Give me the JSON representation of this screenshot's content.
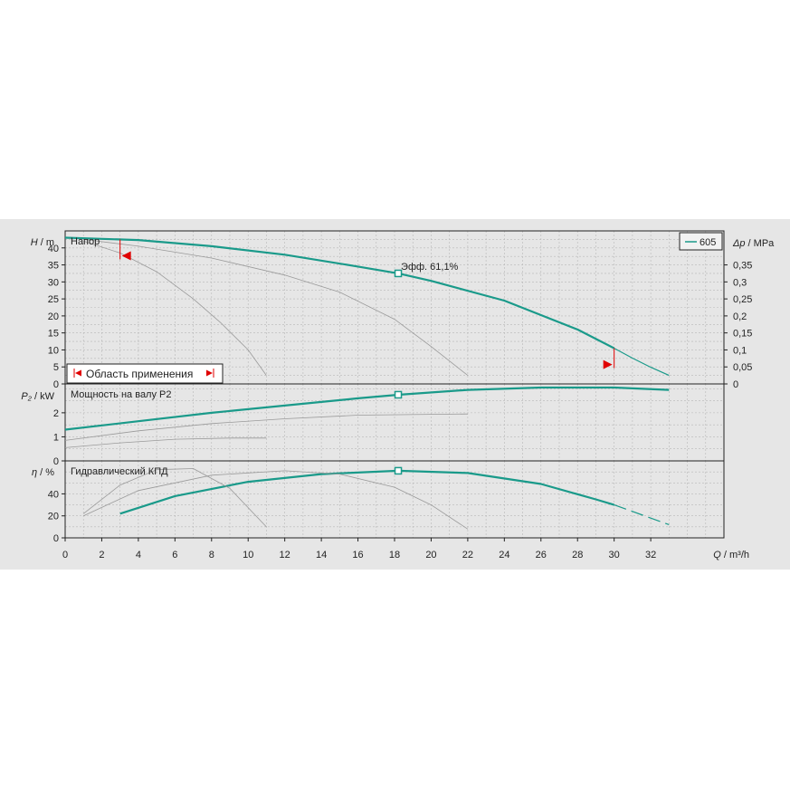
{
  "colors": {
    "background": "#e6e6e6",
    "page": "#ffffff",
    "curve": "#1a9a8a",
    "thin_curve": "#9a9a9a",
    "grid": "#b8b8b8",
    "marker_red": "#e00000",
    "axis": "#222222"
  },
  "legend": {
    "label": "605"
  },
  "duty_point": {
    "q": 18.2,
    "label": "Эфф.  61,1%"
  },
  "application_range": {
    "label": "Область применения",
    "q_min": 3,
    "q_max": 30
  },
  "chart_data": [
    {
      "type": "line",
      "title": "Напор",
      "ylabel_symbol": "H",
      "ylabel_unit": "m",
      "ylim": [
        0,
        45
      ],
      "yticks": [
        0,
        5,
        10,
        15,
        20,
        25,
        30,
        35,
        40
      ],
      "secondary_axis": {
        "label_symbol": "Δp",
        "unit": "MPa",
        "ylim": [
          0,
          0.45
        ],
        "ticks": [
          "0",
          "0,05",
          "0,1",
          "0,15",
          "0,2",
          "0,25",
          "0,3",
          "0,35"
        ],
        "tick_values": [
          0,
          0.05,
          0.1,
          0.15,
          0.2,
          0.25,
          0.3,
          0.35
        ]
      },
      "series": [
        {
          "name": "605",
          "main": true,
          "x": [
            0,
            4,
            8,
            12,
            16,
            18.2,
            20,
            24,
            28,
            30
          ],
          "y": [
            43,
            42.3,
            40.5,
            38,
            34.5,
            32.5,
            30.3,
            24.5,
            16,
            10.5
          ]
        },
        {
          "main": true,
          "dashed": true,
          "x": [
            30,
            31,
            32,
            33
          ],
          "y": [
            10.5,
            7.6,
            4.9,
            2.5
          ]
        },
        {
          "x": [
            1,
            4,
            8,
            12,
            15,
            18,
            20,
            22
          ],
          "y": [
            42.5,
            40.5,
            37,
            32,
            27,
            19,
            11,
            2.5
          ]
        },
        {
          "x": [
            1,
            3,
            5,
            7,
            8.5,
            10,
            11
          ],
          "y": [
            42,
            38.5,
            33,
            25,
            18,
            10,
            2.5
          ]
        }
      ]
    },
    {
      "type": "line",
      "title": "Мощность на валу P2",
      "ylabel_symbol": "P₂",
      "ylabel_unit": "kW",
      "ylim": [
        0,
        3.2
      ],
      "yticks": [
        0,
        1,
        2
      ],
      "series": [
        {
          "main": true,
          "x": [
            0,
            4,
            8,
            12,
            16,
            18.2,
            22,
            26,
            30,
            33
          ],
          "y": [
            1.3,
            1.65,
            2.0,
            2.3,
            2.6,
            2.75,
            2.95,
            3.05,
            3.05,
            2.95
          ]
        },
        {
          "x": [
            0,
            4,
            8,
            12,
            16,
            22
          ],
          "y": [
            0.85,
            1.25,
            1.55,
            1.75,
            1.9,
            1.95
          ]
        },
        {
          "x": [
            0,
            3,
            6,
            9,
            11
          ],
          "y": [
            0.55,
            0.75,
            0.9,
            0.95,
            0.95
          ]
        }
      ]
    },
    {
      "type": "line",
      "title": "Гидравлический КПД",
      "ylabel_symbol": "η",
      "ylabel_unit": "%",
      "ylim": [
        0,
        70
      ],
      "yticks": [
        0,
        20,
        40
      ],
      "series": [
        {
          "main": true,
          "x": [
            3,
            6,
            10,
            14,
            18.2,
            22,
            26,
            29,
            30
          ],
          "y": [
            22,
            38,
            51,
            58,
            61,
            59,
            49,
            35,
            30
          ]
        },
        {
          "main": true,
          "dashed": true,
          "x": [
            30,
            31.5,
            33
          ],
          "y": [
            30,
            21,
            12
          ]
        },
        {
          "x": [
            1,
            4,
            8,
            12,
            15,
            18,
            20,
            22
          ],
          "y": [
            20,
            43,
            57,
            61,
            58,
            46,
            30,
            8
          ]
        },
        {
          "x": [
            1,
            3,
            5,
            7,
            9,
            11
          ],
          "y": [
            22,
            48,
            62,
            63,
            45,
            10
          ]
        }
      ]
    }
  ],
  "x_axis": {
    "label_symbol": "Q",
    "unit": "m³/h",
    "xlim": [
      0,
      36
    ],
    "ticks": [
      0,
      2,
      4,
      6,
      8,
      10,
      12,
      14,
      16,
      18,
      20,
      22,
      24,
      26,
      28,
      30,
      32
    ]
  }
}
